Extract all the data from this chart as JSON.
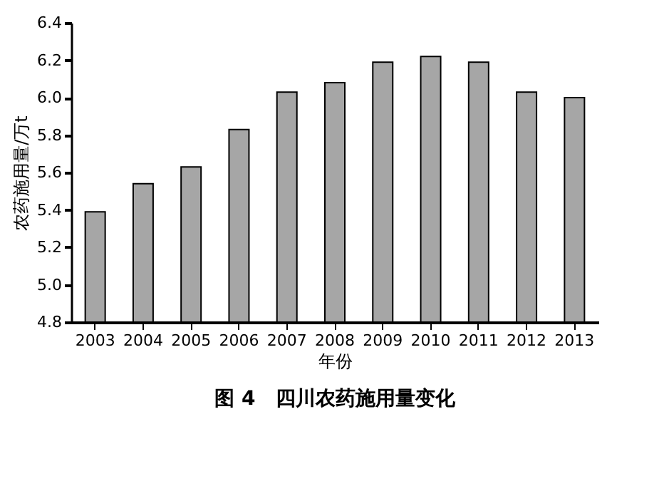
{
  "chart_data": {
    "type": "bar",
    "title": "图 4　四川农药施用量变化",
    "xlabel": "年份",
    "ylabel": "农药施用量/万t",
    "categories": [
      "2003",
      "2004",
      "2005",
      "2006",
      "2007",
      "2008",
      "2009",
      "2010",
      "2011",
      "2012",
      "2013"
    ],
    "values": [
      5.39,
      5.54,
      5.63,
      5.83,
      6.03,
      6.08,
      6.19,
      6.22,
      6.19,
      6.03,
      6.0
    ],
    "color": "#a6a6a6",
    "ylim": [
      4.8,
      6.4
    ],
    "yticks": [
      {
        "value": 4.8,
        "label": "4.8"
      },
      {
        "value": 5.0,
        "label": "5.0"
      },
      {
        "value": 5.2,
        "label": "5.2"
      },
      {
        "value": 5.4,
        "label": "5.4"
      },
      {
        "value": 5.6,
        "label": "5.6"
      },
      {
        "value": 5.8,
        "label": "5.8"
      },
      {
        "value": 6.0,
        "label": "6.0"
      },
      {
        "value": 6.2,
        "label": "6.2"
      },
      {
        "value": 6.4,
        "label": "6.4"
      }
    ],
    "grid": false
  }
}
